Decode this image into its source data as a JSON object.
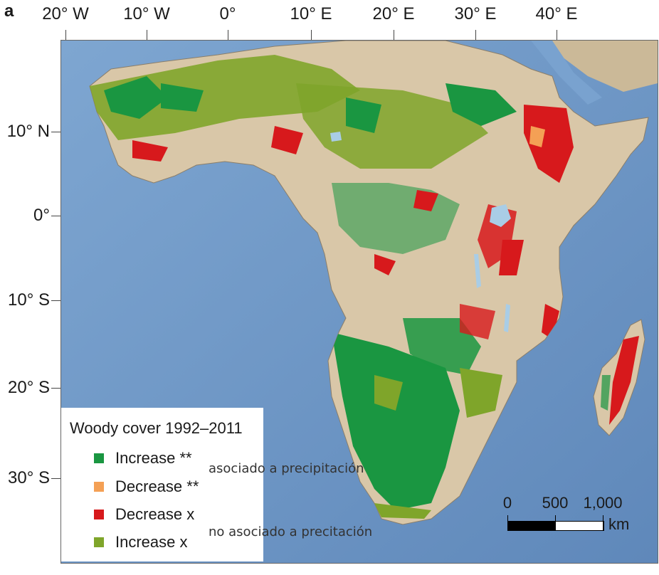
{
  "panel_label": "a",
  "longitude_labels": [
    "20° W",
    "10° W",
    "0°",
    "10° E",
    "20° E",
    "30° E",
    "40° E"
  ],
  "latitude_labels": [
    "10° N",
    "0°",
    "10° S",
    "20° S",
    "30° S"
  ],
  "legend": {
    "title": "Woody cover 1992–2011",
    "items": [
      {
        "label": "Increase **",
        "color": "#1a9641"
      },
      {
        "label": "Decrease **",
        "color": "#f4a055"
      },
      {
        "label": "Decrease x",
        "color": "#d7191c"
      },
      {
        "label": "Increase x",
        "color": "#7fa52a"
      }
    ]
  },
  "annotations": {
    "associated": "asociado a precipitación",
    "not_associated": "no asociado a precitación"
  },
  "scale_bar": {
    "ticks": [
      "0",
      "500",
      "1,000"
    ],
    "unit": "km"
  },
  "colors": {
    "ocean": "#6f97c4",
    "land": "#d9c7a8",
    "desert": "#d8c4a4",
    "lake": "#a9cde6"
  }
}
